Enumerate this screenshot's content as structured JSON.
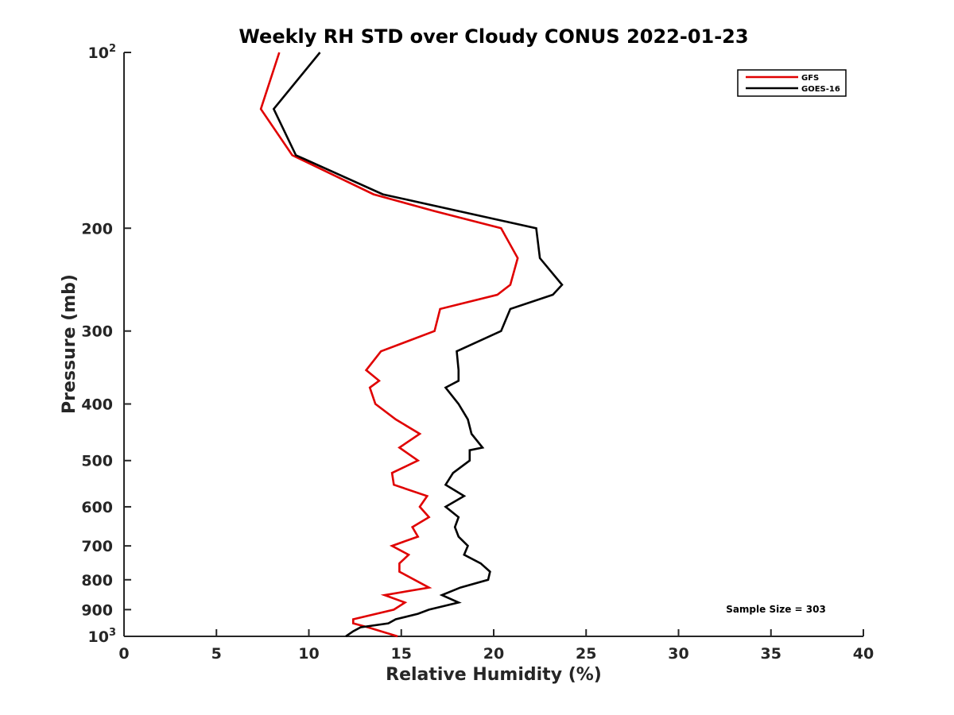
{
  "chart_data": {
    "type": "line",
    "title": "Weekly RH STD over Cloudy CONUS 2022-01-23",
    "xlabel": "Relative Humidity (%)",
    "ylabel": "Pressure (mb)",
    "xlim": [
      0,
      40
    ],
    "ylim": [
      100,
      1000
    ],
    "y_scale": "log",
    "y_reversed": true,
    "x_ticks": [
      0,
      5,
      10,
      15,
      20,
      25,
      30,
      35,
      40
    ],
    "y_ticks": [
      {
        "value": 100,
        "label": "10",
        "exp": "2"
      },
      {
        "value": 200,
        "label": "200",
        "exp": ""
      },
      {
        "value": 300,
        "label": "300",
        "exp": ""
      },
      {
        "value": 400,
        "label": "400",
        "exp": ""
      },
      {
        "value": 500,
        "label": "500",
        "exp": ""
      },
      {
        "value": 600,
        "label": "600",
        "exp": ""
      },
      {
        "value": 700,
        "label": "700",
        "exp": ""
      },
      {
        "value": 800,
        "label": "800",
        "exp": ""
      },
      {
        "value": 900,
        "label": "900",
        "exp": ""
      },
      {
        "value": 1000,
        "label": "10",
        "exp": "3"
      }
    ],
    "grid": false,
    "legend_position": "top-right",
    "annotation": "Sample Size = 303",
    "series": [
      {
        "name": "GFS",
        "color": "#e00000",
        "points": [
          [
            8.4,
            100
          ],
          [
            7.4,
            125
          ],
          [
            9.1,
            150
          ],
          [
            13.5,
            175
          ],
          [
            16.8,
            187
          ],
          [
            20.4,
            200
          ],
          [
            21.3,
            225
          ],
          [
            20.9,
            250
          ],
          [
            20.2,
            260
          ],
          [
            17.1,
            275
          ],
          [
            16.8,
            300
          ],
          [
            13.9,
            325
          ],
          [
            13.1,
            350
          ],
          [
            13.8,
            365
          ],
          [
            13.3,
            375
          ],
          [
            13.6,
            400
          ],
          [
            14.7,
            425
          ],
          [
            16.0,
            450
          ],
          [
            14.9,
            475
          ],
          [
            15.9,
            500
          ],
          [
            14.5,
            525
          ],
          [
            14.6,
            550
          ],
          [
            16.4,
            575
          ],
          [
            16.0,
            600
          ],
          [
            16.5,
            625
          ],
          [
            15.6,
            650
          ],
          [
            15.9,
            675
          ],
          [
            14.5,
            700
          ],
          [
            15.4,
            725
          ],
          [
            14.9,
            750
          ],
          [
            14.9,
            775
          ],
          [
            16.5,
            825
          ],
          [
            14.1,
            850
          ],
          [
            15.2,
            875
          ],
          [
            14.6,
            900
          ],
          [
            12.4,
            935
          ],
          [
            12.4,
            950
          ],
          [
            13.2,
            965
          ],
          [
            14.8,
            1000
          ]
        ]
      },
      {
        "name": "GOES-16",
        "color": "#000000",
        "points": [
          [
            10.6,
            100
          ],
          [
            8.1,
            125
          ],
          [
            9.3,
            150
          ],
          [
            14.0,
            175
          ],
          [
            22.3,
            200
          ],
          [
            22.5,
            225
          ],
          [
            23.7,
            250
          ],
          [
            23.2,
            260
          ],
          [
            20.9,
            275
          ],
          [
            20.4,
            300
          ],
          [
            18.0,
            325
          ],
          [
            18.1,
            350
          ],
          [
            18.1,
            365
          ],
          [
            17.4,
            375
          ],
          [
            18.1,
            400
          ],
          [
            18.6,
            425
          ],
          [
            18.8,
            450
          ],
          [
            19.4,
            475
          ],
          [
            18.7,
            480
          ],
          [
            18.7,
            500
          ],
          [
            17.8,
            525
          ],
          [
            17.4,
            550
          ],
          [
            18.4,
            575
          ],
          [
            17.4,
            600
          ],
          [
            18.1,
            625
          ],
          [
            17.9,
            650
          ],
          [
            18.1,
            675
          ],
          [
            18.6,
            700
          ],
          [
            18.4,
            725
          ],
          [
            19.3,
            750
          ],
          [
            19.8,
            775
          ],
          [
            19.7,
            800
          ],
          [
            18.2,
            825
          ],
          [
            17.2,
            850
          ],
          [
            18.1,
            875
          ],
          [
            16.5,
            900
          ],
          [
            15.9,
            915
          ],
          [
            14.7,
            935
          ],
          [
            14.3,
            950
          ],
          [
            12.8,
            965
          ],
          [
            12.4,
            980
          ],
          [
            12.0,
            1000
          ]
        ]
      }
    ]
  }
}
